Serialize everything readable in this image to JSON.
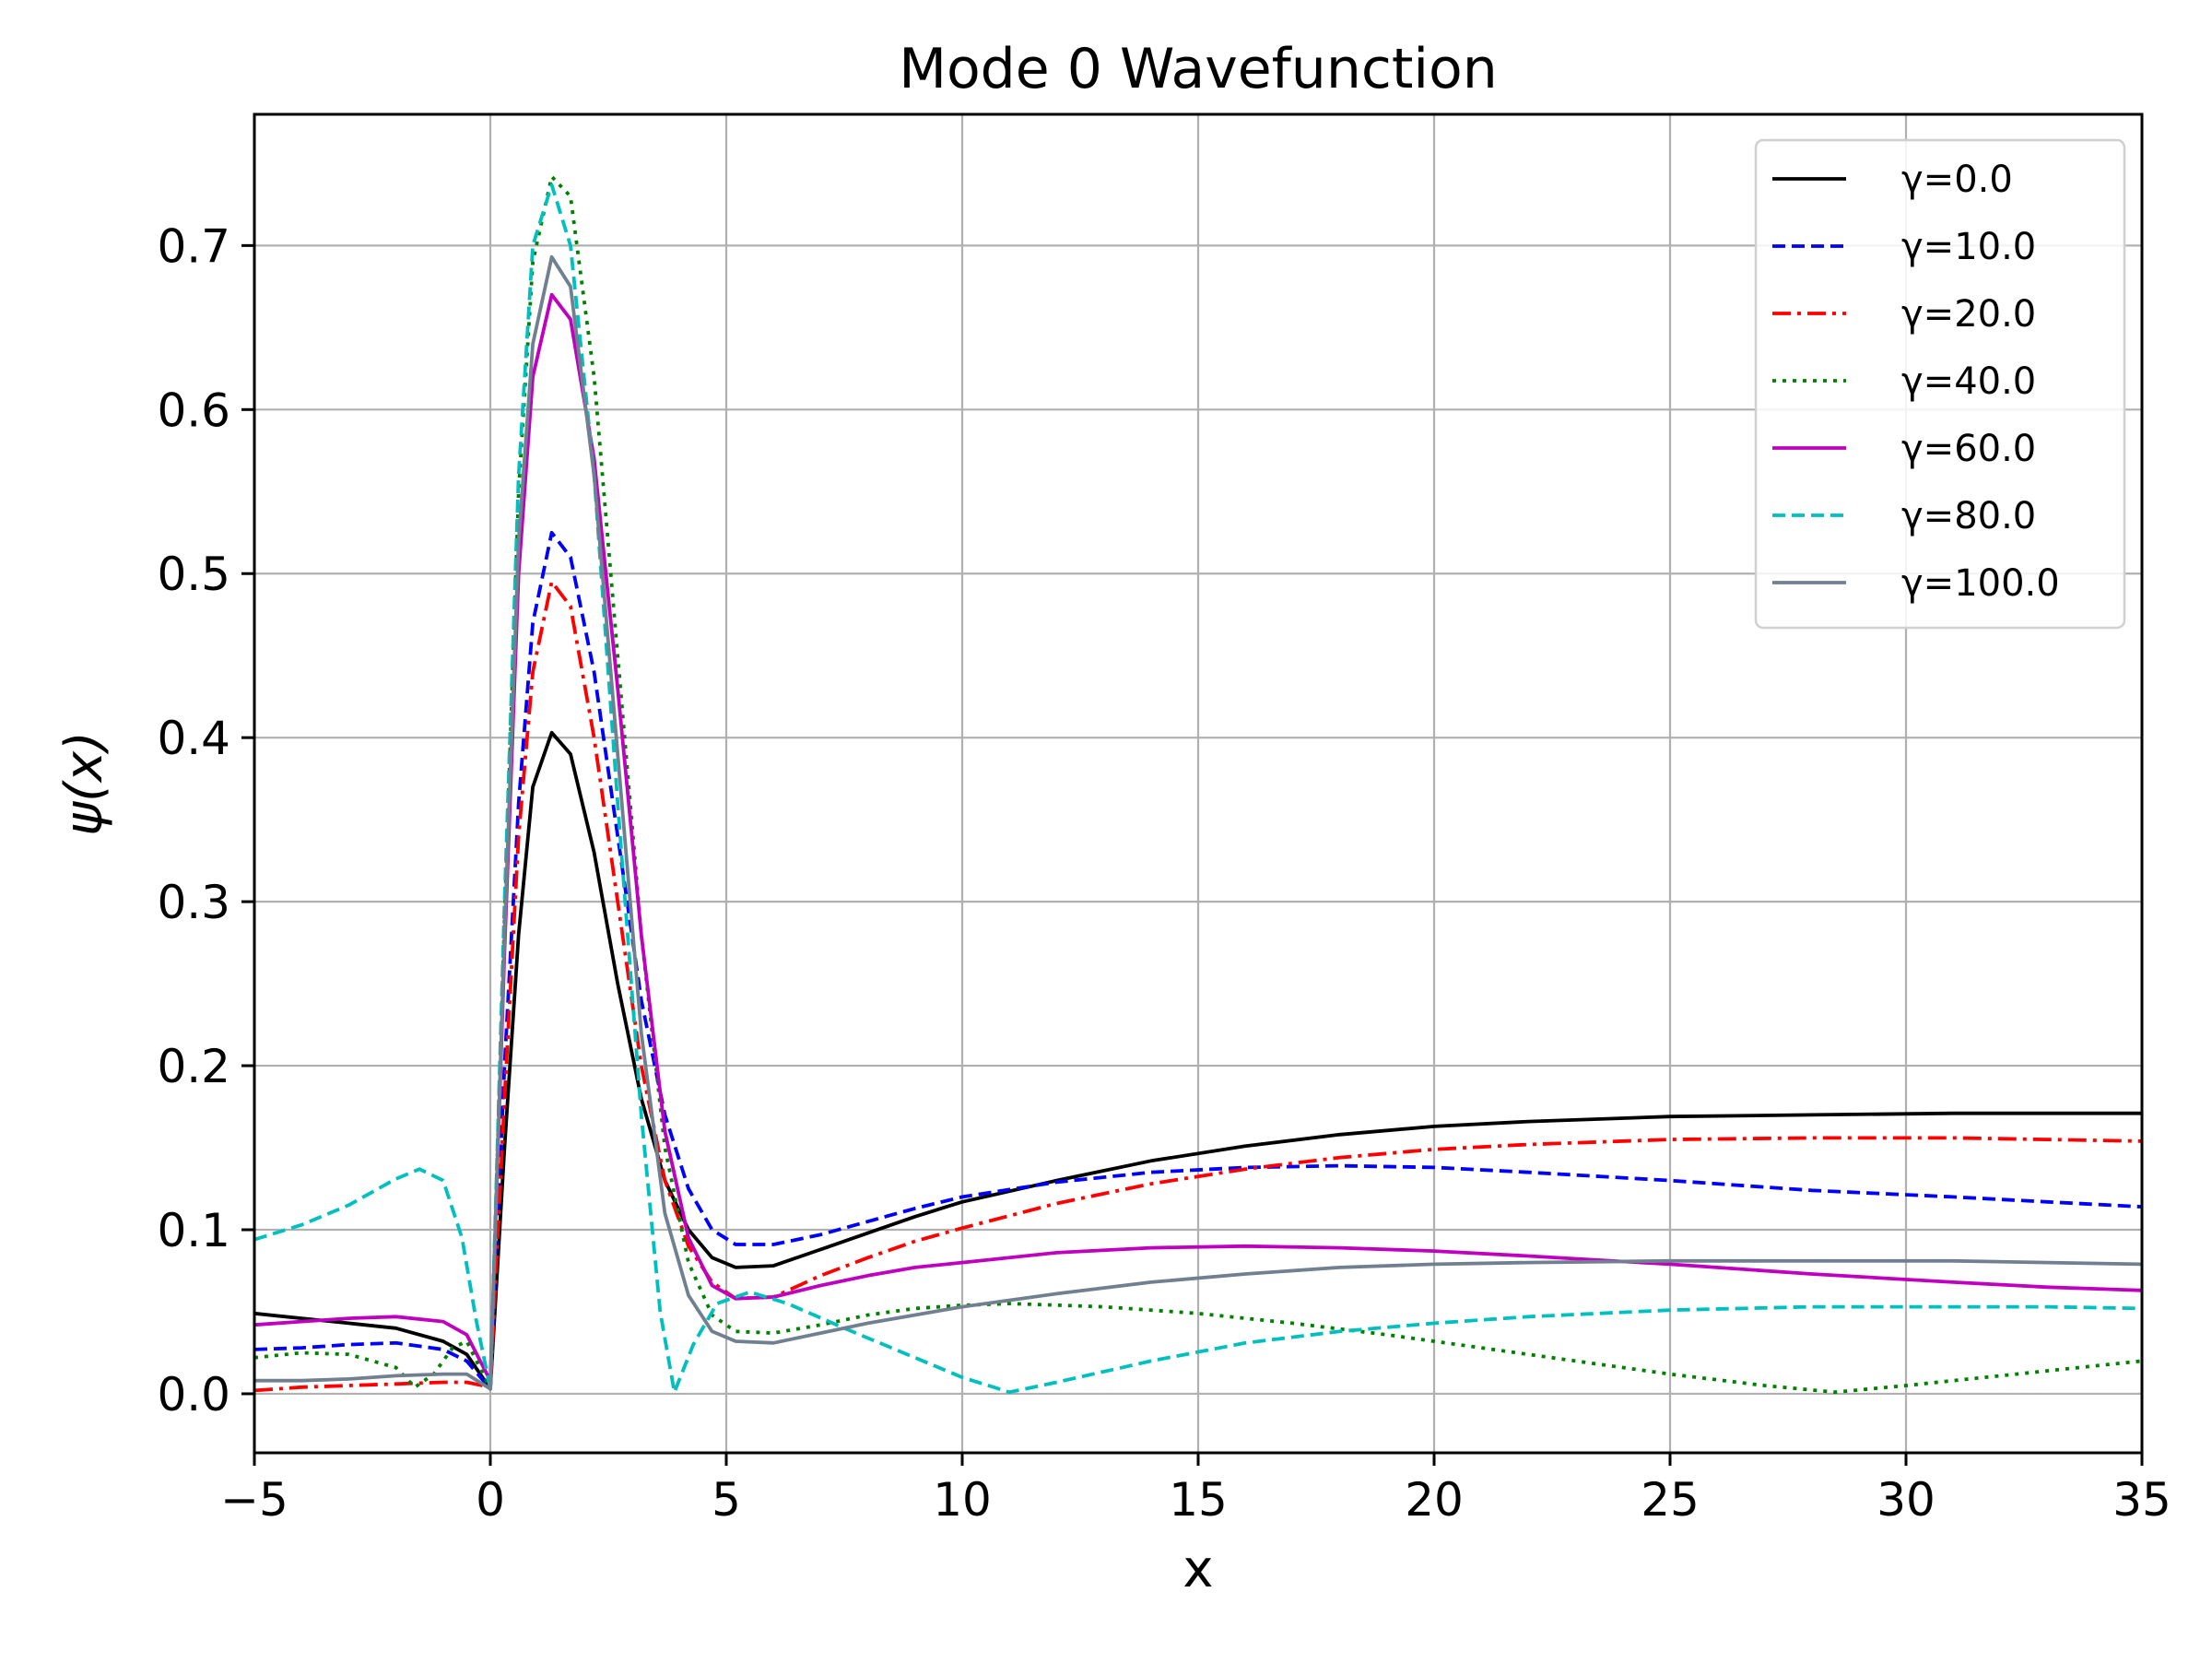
{
  "chart_data": {
    "type": "line",
    "title": "Mode 0 Wavefunction",
    "xlabel": "x",
    "ylabel": "ψ(x)",
    "xlim": [
      -5,
      35
    ],
    "ylim": [
      -0.036,
      0.78
    ],
    "grid": true,
    "legend_position": "top-right",
    "x_ticks": [
      -5,
      0,
      5,
      10,
      15,
      20,
      25,
      30,
      35
    ],
    "x_tick_labels": [
      "−5",
      "0",
      "5",
      "10",
      "15",
      "20",
      "25",
      "30",
      "35"
    ],
    "y_ticks": [
      0.0,
      0.1,
      0.2,
      0.3,
      0.4,
      0.5,
      0.6,
      0.7
    ],
    "y_tick_labels": [
      "0.0",
      "0.1",
      "0.2",
      "0.3",
      "0.4",
      "0.5",
      "0.6",
      "0.7"
    ],
    "series": [
      {
        "name": "γ=0.0",
        "color": "#000000",
        "dash": "solid",
        "points": [
          [
            -5,
            0.049
          ],
          [
            -4,
            0.046
          ],
          [
            -3,
            0.043
          ],
          [
            -2,
            0.04
          ],
          [
            -1,
            0.032
          ],
          [
            -0.5,
            0.024
          ],
          [
            0,
            0.003
          ],
          [
            0.3,
            0.15
          ],
          [
            0.6,
            0.28
          ],
          [
            0.9,
            0.37
          ],
          [
            1.3,
            0.403
          ],
          [
            1.7,
            0.39
          ],
          [
            2.2,
            0.33
          ],
          [
            2.7,
            0.25
          ],
          [
            3.2,
            0.18
          ],
          [
            3.7,
            0.13
          ],
          [
            4.2,
            0.1
          ],
          [
            4.7,
            0.083
          ],
          [
            5.2,
            0.077
          ],
          [
            6,
            0.078
          ],
          [
            7,
            0.088
          ],
          [
            8,
            0.098
          ],
          [
            9,
            0.108
          ],
          [
            10,
            0.117
          ],
          [
            12,
            0.13
          ],
          [
            14,
            0.142
          ],
          [
            16,
            0.151
          ],
          [
            18,
            0.158
          ],
          [
            20,
            0.163
          ],
          [
            22,
            0.166
          ],
          [
            25,
            0.169
          ],
          [
            28,
            0.17
          ],
          [
            31,
            0.171
          ],
          [
            33,
            0.171
          ],
          [
            35,
            0.171
          ]
        ]
      },
      {
        "name": "γ=10.0",
        "color": "#0000ff",
        "dash": "dashed",
        "points": [
          [
            -5,
            0.027
          ],
          [
            -4,
            0.028
          ],
          [
            -3,
            0.03
          ],
          [
            -2,
            0.031
          ],
          [
            -1,
            0.027
          ],
          [
            -0.5,
            0.02
          ],
          [
            0,
            0.003
          ],
          [
            0.3,
            0.2
          ],
          [
            0.6,
            0.36
          ],
          [
            0.9,
            0.47
          ],
          [
            1.3,
            0.525
          ],
          [
            1.7,
            0.51
          ],
          [
            2.2,
            0.44
          ],
          [
            2.7,
            0.34
          ],
          [
            3.2,
            0.24
          ],
          [
            3.7,
            0.17
          ],
          [
            4.2,
            0.125
          ],
          [
            4.7,
            0.1
          ],
          [
            5.2,
            0.091
          ],
          [
            6,
            0.091
          ],
          [
            7,
            0.097
          ],
          [
            8,
            0.105
          ],
          [
            9,
            0.113
          ],
          [
            10,
            0.12
          ],
          [
            12,
            0.129
          ],
          [
            14,
            0.135
          ],
          [
            16,
            0.138
          ],
          [
            18,
            0.139
          ],
          [
            20,
            0.138
          ],
          [
            22,
            0.135
          ],
          [
            25,
            0.13
          ],
          [
            28,
            0.124
          ],
          [
            31,
            0.12
          ],
          [
            33,
            0.117
          ],
          [
            35,
            0.114
          ]
        ]
      },
      {
        "name": "γ=20.0",
        "color": "#ff0000",
        "dash": "dashdot",
        "points": [
          [
            -5,
            0.002
          ],
          [
            -4,
            0.004
          ],
          [
            -3,
            0.005
          ],
          [
            -2,
            0.006
          ],
          [
            -1,
            0.007
          ],
          [
            -0.5,
            0.007
          ],
          [
            0,
            0.004
          ],
          [
            0.3,
            0.18
          ],
          [
            0.6,
            0.34
          ],
          [
            0.9,
            0.44
          ],
          [
            1.3,
            0.495
          ],
          [
            1.7,
            0.48
          ],
          [
            2.2,
            0.4
          ],
          [
            2.7,
            0.3
          ],
          [
            3.2,
            0.2
          ],
          [
            3.7,
            0.13
          ],
          [
            4.2,
            0.09
          ],
          [
            4.7,
            0.068
          ],
          [
            5.2,
            0.058
          ],
          [
            6,
            0.059
          ],
          [
            7,
            0.072
          ],
          [
            8,
            0.083
          ],
          [
            9,
            0.093
          ],
          [
            10,
            0.101
          ],
          [
            12,
            0.116
          ],
          [
            14,
            0.128
          ],
          [
            16,
            0.137
          ],
          [
            18,
            0.144
          ],
          [
            20,
            0.149
          ],
          [
            22,
            0.152
          ],
          [
            25,
            0.155
          ],
          [
            28,
            0.156
          ],
          [
            31,
            0.156
          ],
          [
            33,
            0.155
          ],
          [
            35,
            0.154
          ]
        ]
      },
      {
        "name": "γ=40.0",
        "color": "#008000",
        "dash": "dotted",
        "points": [
          [
            -5,
            0.022
          ],
          [
            -4,
            0.025
          ],
          [
            -3,
            0.024
          ],
          [
            -2,
            0.016
          ],
          [
            -1.6,
            0.004
          ],
          [
            -1.2,
            0.012
          ],
          [
            -0.8,
            0.028
          ],
          [
            -0.5,
            0.032
          ],
          [
            0,
            0.003
          ],
          [
            0.3,
            0.29
          ],
          [
            0.6,
            0.55
          ],
          [
            0.9,
            0.69
          ],
          [
            1.3,
            0.742
          ],
          [
            1.7,
            0.73
          ],
          [
            2.2,
            0.62
          ],
          [
            2.7,
            0.45
          ],
          [
            3.2,
            0.28
          ],
          [
            3.7,
            0.15
          ],
          [
            4.2,
            0.08
          ],
          [
            4.7,
            0.048
          ],
          [
            5.2,
            0.038
          ],
          [
            6,
            0.037
          ],
          [
            7,
            0.042
          ],
          [
            8,
            0.048
          ],
          [
            9,
            0.052
          ],
          [
            10,
            0.054
          ],
          [
            11,
            0.055
          ],
          [
            13,
            0.053
          ],
          [
            15,
            0.049
          ],
          [
            17,
            0.043
          ],
          [
            19,
            0.036
          ],
          [
            21,
            0.028
          ],
          [
            23,
            0.02
          ],
          [
            25,
            0.012
          ],
          [
            27,
            0.005
          ],
          [
            28.5,
            0.001
          ],
          [
            30,
            0.005
          ],
          [
            32,
            0.011
          ],
          [
            34,
            0.017
          ],
          [
            35,
            0.02
          ]
        ]
      },
      {
        "name": "γ=60.0",
        "color": "#bf00bf",
        "dash": "solid",
        "points": [
          [
            -5,
            0.042
          ],
          [
            -4,
            0.044
          ],
          [
            -3,
            0.046
          ],
          [
            -2,
            0.047
          ],
          [
            -1,
            0.044
          ],
          [
            -0.5,
            0.036
          ],
          [
            0,
            0.008
          ],
          [
            0.3,
            0.27
          ],
          [
            0.6,
            0.5
          ],
          [
            0.9,
            0.62
          ],
          [
            1.3,
            0.67
          ],
          [
            1.7,
            0.655
          ],
          [
            2.2,
            0.57
          ],
          [
            2.7,
            0.43
          ],
          [
            3.2,
            0.28
          ],
          [
            3.7,
            0.16
          ],
          [
            4.2,
            0.095
          ],
          [
            4.7,
            0.066
          ],
          [
            5.2,
            0.058
          ],
          [
            6,
            0.059
          ],
          [
            7,
            0.066
          ],
          [
            8,
            0.072
          ],
          [
            9,
            0.077
          ],
          [
            10,
            0.08
          ],
          [
            12,
            0.086
          ],
          [
            14,
            0.089
          ],
          [
            16,
            0.09
          ],
          [
            18,
            0.089
          ],
          [
            20,
            0.087
          ],
          [
            22,
            0.084
          ],
          [
            25,
            0.079
          ],
          [
            28,
            0.073
          ],
          [
            31,
            0.068
          ],
          [
            33,
            0.065
          ],
          [
            35,
            0.063
          ]
        ]
      },
      {
        "name": "γ=80.0",
        "color": "#00bfbf",
        "dash": "dashed",
        "points": [
          [
            -5,
            0.094
          ],
          [
            -4,
            0.103
          ],
          [
            -3,
            0.115
          ],
          [
            -2,
            0.131
          ],
          [
            -1.5,
            0.137
          ],
          [
            -1,
            0.13
          ],
          [
            -0.6,
            0.095
          ],
          [
            -0.3,
            0.045
          ],
          [
            0,
            0.003
          ],
          [
            0.3,
            0.3
          ],
          [
            0.6,
            0.56
          ],
          [
            0.9,
            0.7
          ],
          [
            1.3,
            0.737
          ],
          [
            1.7,
            0.7
          ],
          [
            2.2,
            0.56
          ],
          [
            2.7,
            0.36
          ],
          [
            3.2,
            0.17
          ],
          [
            3.6,
            0.05
          ],
          [
            3.9,
            0.001
          ],
          [
            4.3,
            0.03
          ],
          [
            4.8,
            0.055
          ],
          [
            5.5,
            0.062
          ],
          [
            6.3,
            0.055
          ],
          [
            7.5,
            0.04
          ],
          [
            9,
            0.022
          ],
          [
            10,
            0.01
          ],
          [
            11,
            0.001
          ],
          [
            12,
            0.007
          ],
          [
            14,
            0.02
          ],
          [
            16,
            0.031
          ],
          [
            18,
            0.038
          ],
          [
            20,
            0.043
          ],
          [
            22,
            0.047
          ],
          [
            25,
            0.051
          ],
          [
            28,
            0.053
          ],
          [
            31,
            0.053
          ],
          [
            33,
            0.053
          ],
          [
            35,
            0.052
          ]
        ]
      },
      {
        "name": "γ=100.0",
        "color": "#708090",
        "dash": "solid",
        "points": [
          [
            -5,
            0.008
          ],
          [
            -4,
            0.008
          ],
          [
            -3,
            0.009
          ],
          [
            -2,
            0.011
          ],
          [
            -1,
            0.012
          ],
          [
            -0.5,
            0.012
          ],
          [
            0,
            0.003
          ],
          [
            0.3,
            0.28
          ],
          [
            0.6,
            0.52
          ],
          [
            0.9,
            0.64
          ],
          [
            1.3,
            0.693
          ],
          [
            1.7,
            0.675
          ],
          [
            2.2,
            0.56
          ],
          [
            2.7,
            0.39
          ],
          [
            3.2,
            0.22
          ],
          [
            3.7,
            0.11
          ],
          [
            4.2,
            0.06
          ],
          [
            4.7,
            0.038
          ],
          [
            5.2,
            0.032
          ],
          [
            6,
            0.031
          ],
          [
            7,
            0.037
          ],
          [
            8,
            0.043
          ],
          [
            9,
            0.048
          ],
          [
            10,
            0.053
          ],
          [
            12,
            0.061
          ],
          [
            14,
            0.068
          ],
          [
            16,
            0.073
          ],
          [
            18,
            0.077
          ],
          [
            20,
            0.079
          ],
          [
            22,
            0.08
          ],
          [
            25,
            0.081
          ],
          [
            28,
            0.081
          ],
          [
            31,
            0.081
          ],
          [
            33,
            0.08
          ],
          [
            35,
            0.079
          ]
        ]
      }
    ]
  }
}
